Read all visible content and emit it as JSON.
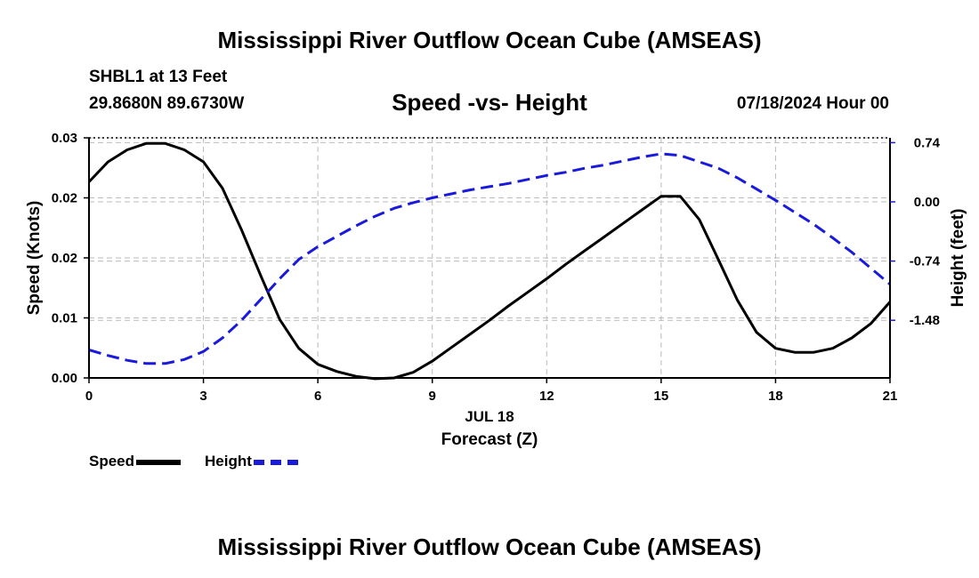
{
  "header": {
    "title": "Mississippi River Outflow Ocean Cube (AMSEAS)",
    "station": "SHBL1 at 13 Feet",
    "coordinates": "29.8680N  89.6730W",
    "subtitle": "Speed -vs- Height",
    "datetime": "07/18/2024 Hour 00"
  },
  "footer": {
    "title": "Mississippi River Outflow Ocean Cube (AMSEAS)"
  },
  "chart_data": {
    "type": "line",
    "title": "Speed -vs- Height",
    "xlabel": "Forecast (Z)",
    "xlabel_date": "JUL 18",
    "x_ticks": [
      "0",
      "3",
      "6",
      "9",
      "12",
      "15",
      "18",
      "21"
    ],
    "xlim": [
      0,
      21
    ],
    "left_axis": {
      "label": "Speed (Knots)",
      "ticks": [
        "0.00",
        "0.01",
        "0.02",
        "0.02",
        "0.03"
      ],
      "tick_values": [
        0.0,
        0.0075,
        0.015,
        0.0225,
        0.03
      ],
      "ylim": [
        0,
        0.03
      ]
    },
    "right_axis": {
      "label": "Height (feet)",
      "ticks": [
        "-1.48",
        "-0.74",
        "0.00",
        "0.74"
      ],
      "tick_values": [
        -1.48,
        -0.74,
        0.0,
        0.74
      ],
      "ylim": [
        -2.2,
        0.8
      ]
    },
    "grid": true,
    "series": [
      {
        "name": "Speed",
        "axis": "left",
        "color": "#000000",
        "style": "solid",
        "x": [
          0,
          0.5,
          1,
          1.5,
          2,
          2.5,
          3,
          3.5,
          4,
          4.5,
          5,
          5.5,
          6,
          6.5,
          7,
          7.5,
          8,
          8.5,
          9,
          9.5,
          10,
          10.5,
          11,
          11.5,
          12,
          12.5,
          13,
          13.5,
          14,
          14.5,
          15,
          15.5,
          16,
          16.5,
          17,
          17.5,
          18,
          18.5,
          19,
          19.5,
          20,
          20.5,
          21
        ],
        "y": [
          0.0245,
          0.027,
          0.0285,
          0.0293,
          0.0293,
          0.0285,
          0.027,
          0.0237,
          0.0185,
          0.0128,
          0.0073,
          0.0037,
          0.0017,
          0.0008,
          0.0002,
          -0.0001,
          0.0,
          0.0007,
          0.0021,
          0.0038,
          0.0055,
          0.0072,
          0.009,
          0.0107,
          0.0124,
          0.0142,
          0.0159,
          0.0176,
          0.0193,
          0.021,
          0.0227,
          0.0227,
          0.0198,
          0.0148,
          0.0097,
          0.0057,
          0.0037,
          0.0032,
          0.0032,
          0.0037,
          0.005,
          0.0068,
          0.0095
        ]
      },
      {
        "name": "Height",
        "axis": "right",
        "color": "#1a1adb",
        "style": "dashed",
        "x": [
          0,
          0.5,
          1,
          1.5,
          2,
          2.5,
          3,
          3.5,
          4,
          4.5,
          5,
          5.5,
          6,
          6.5,
          7,
          7.5,
          8,
          8.5,
          9,
          9.5,
          10,
          10.5,
          11,
          11.5,
          12,
          12.5,
          13,
          13.5,
          14,
          14.5,
          15,
          15.5,
          16,
          16.5,
          17,
          17.5,
          18,
          18.5,
          19,
          19.5,
          20,
          20.5,
          21
        ],
        "y": [
          -1.85,
          -1.92,
          -1.98,
          -2.02,
          -2.02,
          -1.97,
          -1.87,
          -1.7,
          -1.48,
          -1.22,
          -0.96,
          -0.72,
          -0.56,
          -0.43,
          -0.3,
          -0.18,
          -0.08,
          -0.01,
          0.05,
          0.1,
          0.15,
          0.19,
          0.23,
          0.28,
          0.33,
          0.37,
          0.42,
          0.46,
          0.51,
          0.56,
          0.6,
          0.58,
          0.5,
          0.42,
          0.3,
          0.16,
          0.02,
          -0.13,
          -0.28,
          -0.45,
          -0.63,
          -0.83,
          -1.03
        ]
      }
    ]
  },
  "legend": {
    "items": [
      {
        "label": "Speed",
        "color": "#000000",
        "style": "solid"
      },
      {
        "label": "Height",
        "color": "#1a1adb",
        "style": "dashed"
      }
    ]
  }
}
